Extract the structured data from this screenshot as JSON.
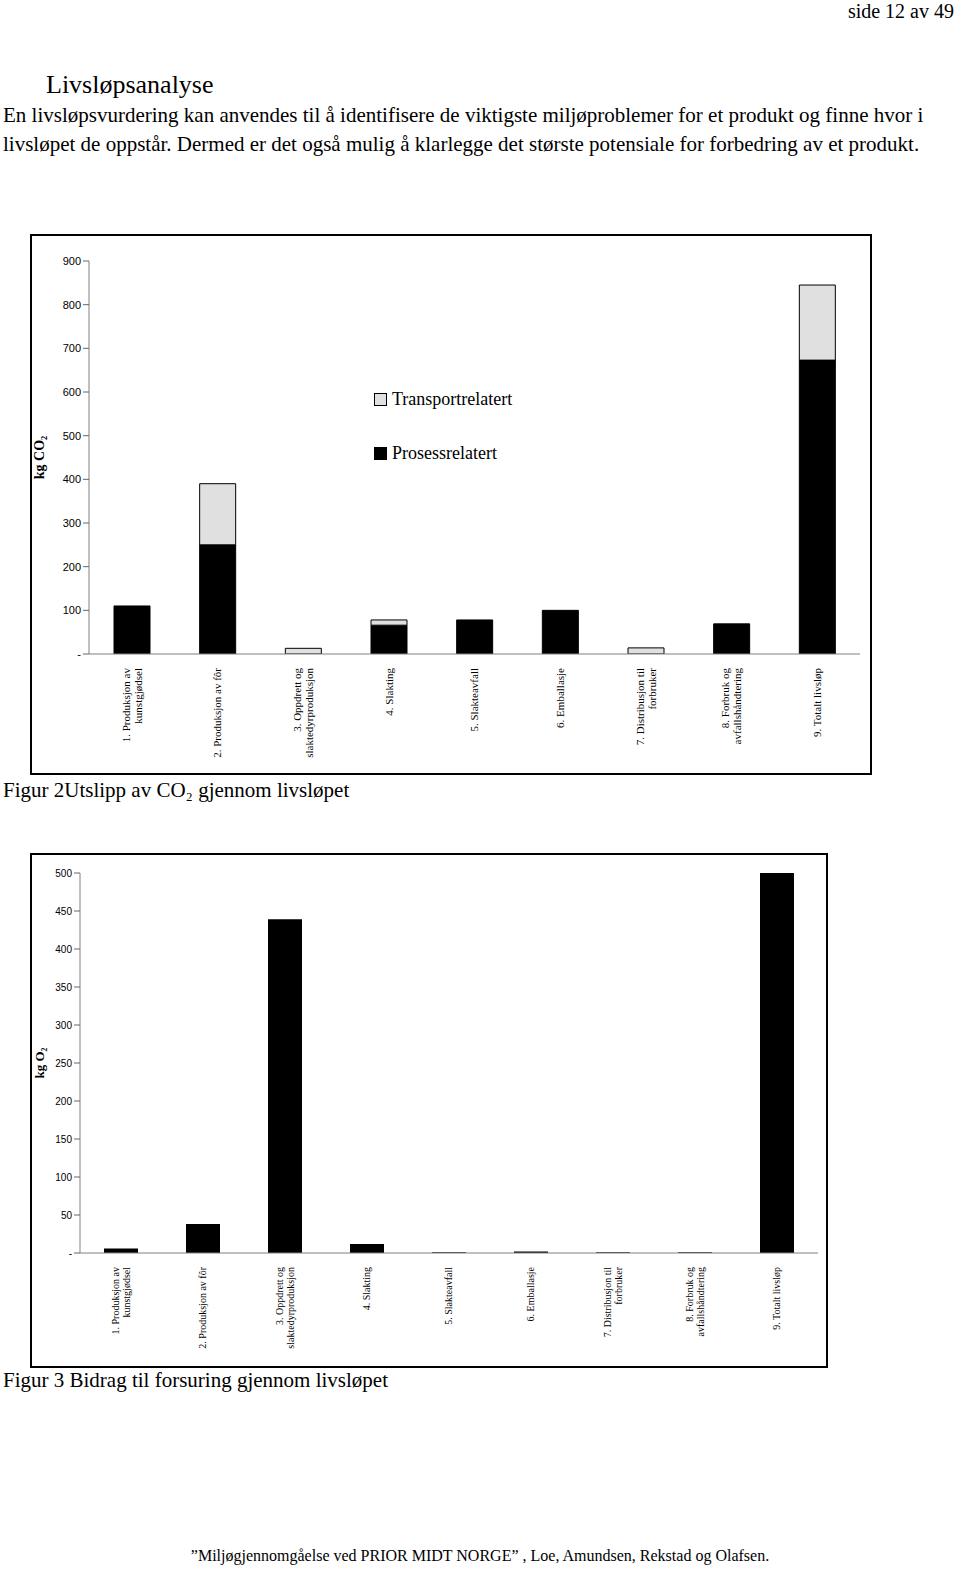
{
  "page": "side 12 av 49",
  "heading": "Livsløpsanalyse",
  "paragraph": "En livsløpsvurdering kan anvendes til å identifisere de viktigste miljøproblemer for et produkt og finne hvor i livsløpet de oppstår. Dermed er det også mulig å klarlegge det største potensiale for forbedring av et produkt.",
  "chart_data": [
    {
      "type": "bar",
      "title": "Figur 2Utslipp av CO₂ gjennom livsløpet",
      "y_label": "kg CO₂",
      "categories": [
        "1. Produksjon av kunstgjødsel",
        "2. Produksjon av fôr",
        "3. Oppdrett og slaktedyrproduksjon",
        "4. Slakting",
        "5. Slakteavfall",
        "6. Emballasje",
        "7. Distribusjon til forbruker",
        "8. Forbruk og avfallshåndtering",
        "9. Totalt livsløp"
      ],
      "series": [
        {
          "name": "Transportrelatert",
          "color": "#e0e0e0",
          "values": [
            0,
            140,
            13,
            12,
            0,
            0,
            14,
            0,
            172
          ]
        },
        {
          "name": "Prosessrelatert",
          "color": "#000000",
          "values": [
            110,
            250,
            0,
            66,
            78,
            100,
            0,
            69,
            673
          ]
        }
      ],
      "stacked": true,
      "legend": "top",
      "grid": false,
      "ylim": [
        0,
        900
      ],
      "yticks": [
        {
          "value": 0,
          "label": "-"
        },
        100,
        200,
        300,
        400,
        500,
        600,
        700,
        800,
        900
      ]
    },
    {
      "type": "bar",
      "title": "Figur 3 Bidrag til forsuring gjennom livsløpet",
      "y_label": "kg O₂",
      "categories": [
        "1. Produksjon av kunstgjødsel",
        "2. Produksjon av fôr",
        "3. Oppdrett og slaktedyrproduksjon",
        "4. Slakting",
        "5. Slakteavfall",
        "6. Emballasje",
        "7. Distribusjon til forbruker",
        "8. Forbruk og avfallshåndtering",
        "9. Totalt livsløp"
      ],
      "values": [
        6,
        38,
        439,
        12,
        1,
        2,
        1,
        1,
        500
      ],
      "color": "#000000",
      "grid": false,
      "ylim": [
        0,
        500
      ],
      "yticks": [
        {
          "value": 0,
          "label": "-"
        },
        50,
        100,
        150,
        200,
        250,
        300,
        350,
        400,
        450,
        500
      ]
    }
  ],
  "footer": "”Miljøgjennomgåelse ved PRIOR MIDT NORGE” , Loe, Amundsen, Rekstad og Olafsen."
}
